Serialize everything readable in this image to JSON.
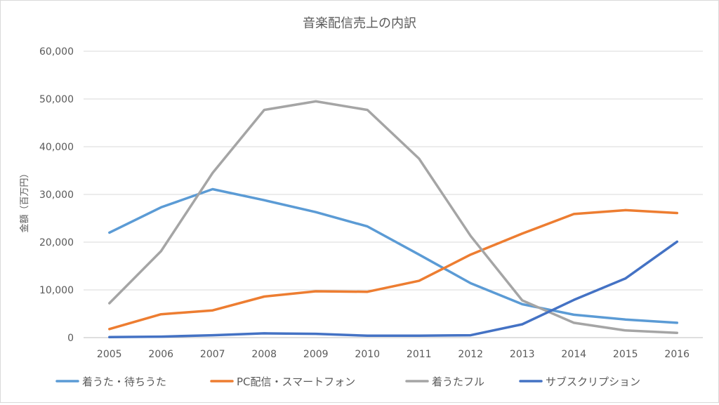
{
  "chart_data": {
    "type": "line",
    "title": "音楽配信売上の内訳",
    "xlabel": "",
    "ylabel": "金額（百万円）",
    "ylim": [
      0,
      60000
    ],
    "yticks": [
      0,
      10000,
      20000,
      30000,
      40000,
      50000,
      60000
    ],
    "ytick_labels": [
      "0",
      "10,000",
      "20,000",
      "30,000",
      "40,000",
      "50,000",
      "60,000"
    ],
    "grid": true,
    "legend": "bottom",
    "categories": [
      "2005",
      "2006",
      "2007",
      "2008",
      "2009",
      "2010",
      "2011",
      "2012",
      "2013",
      "2014",
      "2015",
      "2016"
    ],
    "series": [
      {
        "name": "着うた・待ちうた",
        "color": "#5B9BD5",
        "values": [
          22000,
          27300,
          31100,
          28800,
          26300,
          23300,
          17400,
          11400,
          7000,
          4800,
          3800,
          3100
        ]
      },
      {
        "name": "PC配信・スマートフォン",
        "color": "#ED7D31",
        "values": [
          1800,
          4900,
          5700,
          8600,
          9700,
          9600,
          11900,
          17400,
          21800,
          25900,
          26700,
          26100
        ]
      },
      {
        "name": "着うたフル",
        "color": "#A5A5A5",
        "values": [
          7200,
          18100,
          34500,
          47700,
          49500,
          47700,
          37500,
          21300,
          7800,
          3100,
          1500,
          1000
        ]
      },
      {
        "name": "サブスクリプション",
        "color": "#4472C4",
        "values": [
          100,
          200,
          500,
          900,
          800,
          400,
          400,
          500,
          2800,
          7900,
          12400,
          20100
        ]
      }
    ]
  }
}
